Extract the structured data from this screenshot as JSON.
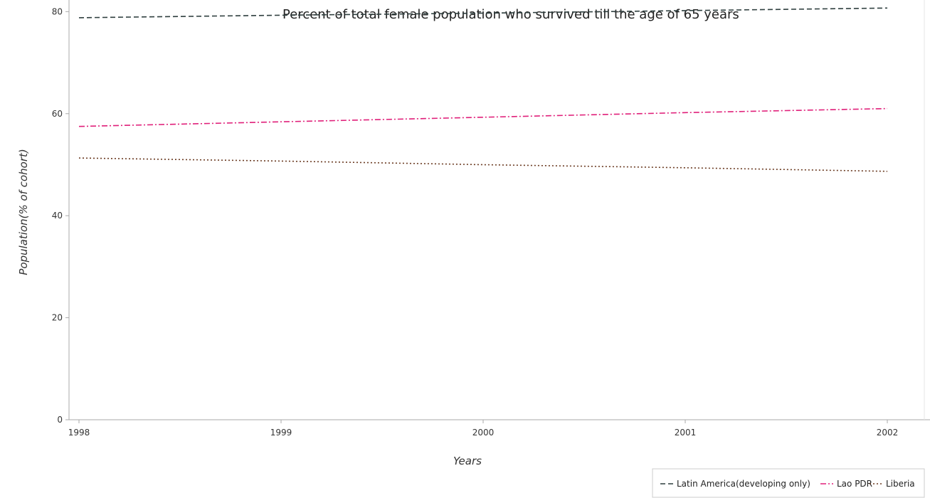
{
  "chart_data": {
    "type": "line",
    "title": "Percent of total female population who survived till the age of 65 years",
    "xlabel": "Years",
    "ylabel": "Population(% of cohort)",
    "x": [
      "1998",
      "1999",
      "2000",
      "2001",
      "2002"
    ],
    "ylim": [
      0,
      82
    ],
    "yticks": [
      0,
      20,
      40,
      60,
      80
    ],
    "grid": false,
    "legend_position": "bottom-right",
    "series": [
      {
        "name": "Latin America(developing only)",
        "color": "#2f3f3f",
        "dash": "dashed",
        "values": [
          78.8,
          79.3,
          79.7,
          80.2,
          80.7
        ]
      },
      {
        "name": "Lao PDR",
        "color": "#e0207a",
        "dash": "dashdot",
        "values": [
          57.5,
          58.4,
          59.3,
          60.2,
          61.0
        ]
      },
      {
        "name": "Liberia",
        "color": "#6b3b22",
        "dash": "dotted",
        "values": [
          51.3,
          50.7,
          50.0,
          49.4,
          48.7
        ]
      }
    ]
  }
}
